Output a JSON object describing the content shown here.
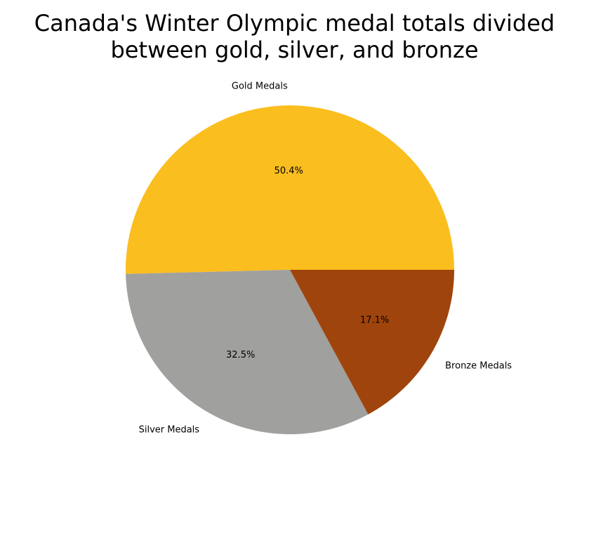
{
  "chart_data": {
    "type": "pie",
    "title_lines": [
      "Canada's Winter Olympic medal totals divided",
      "between gold, silver, and bronze"
    ],
    "slices": [
      {
        "label": "Gold Medals",
        "value": 50.4,
        "pct_label": "50.4%",
        "color": "#fbbe1f"
      },
      {
        "label": "Silver Medals",
        "value": 32.5,
        "pct_label": "32.5%",
        "color": "#a0a09e"
      },
      {
        "label": "Bronze Medals",
        "value": 17.1,
        "pct_label": "17.1%",
        "color": "#a0440d"
      }
    ],
    "start_angle_deg": 0,
    "direction": "counterclockwise"
  }
}
